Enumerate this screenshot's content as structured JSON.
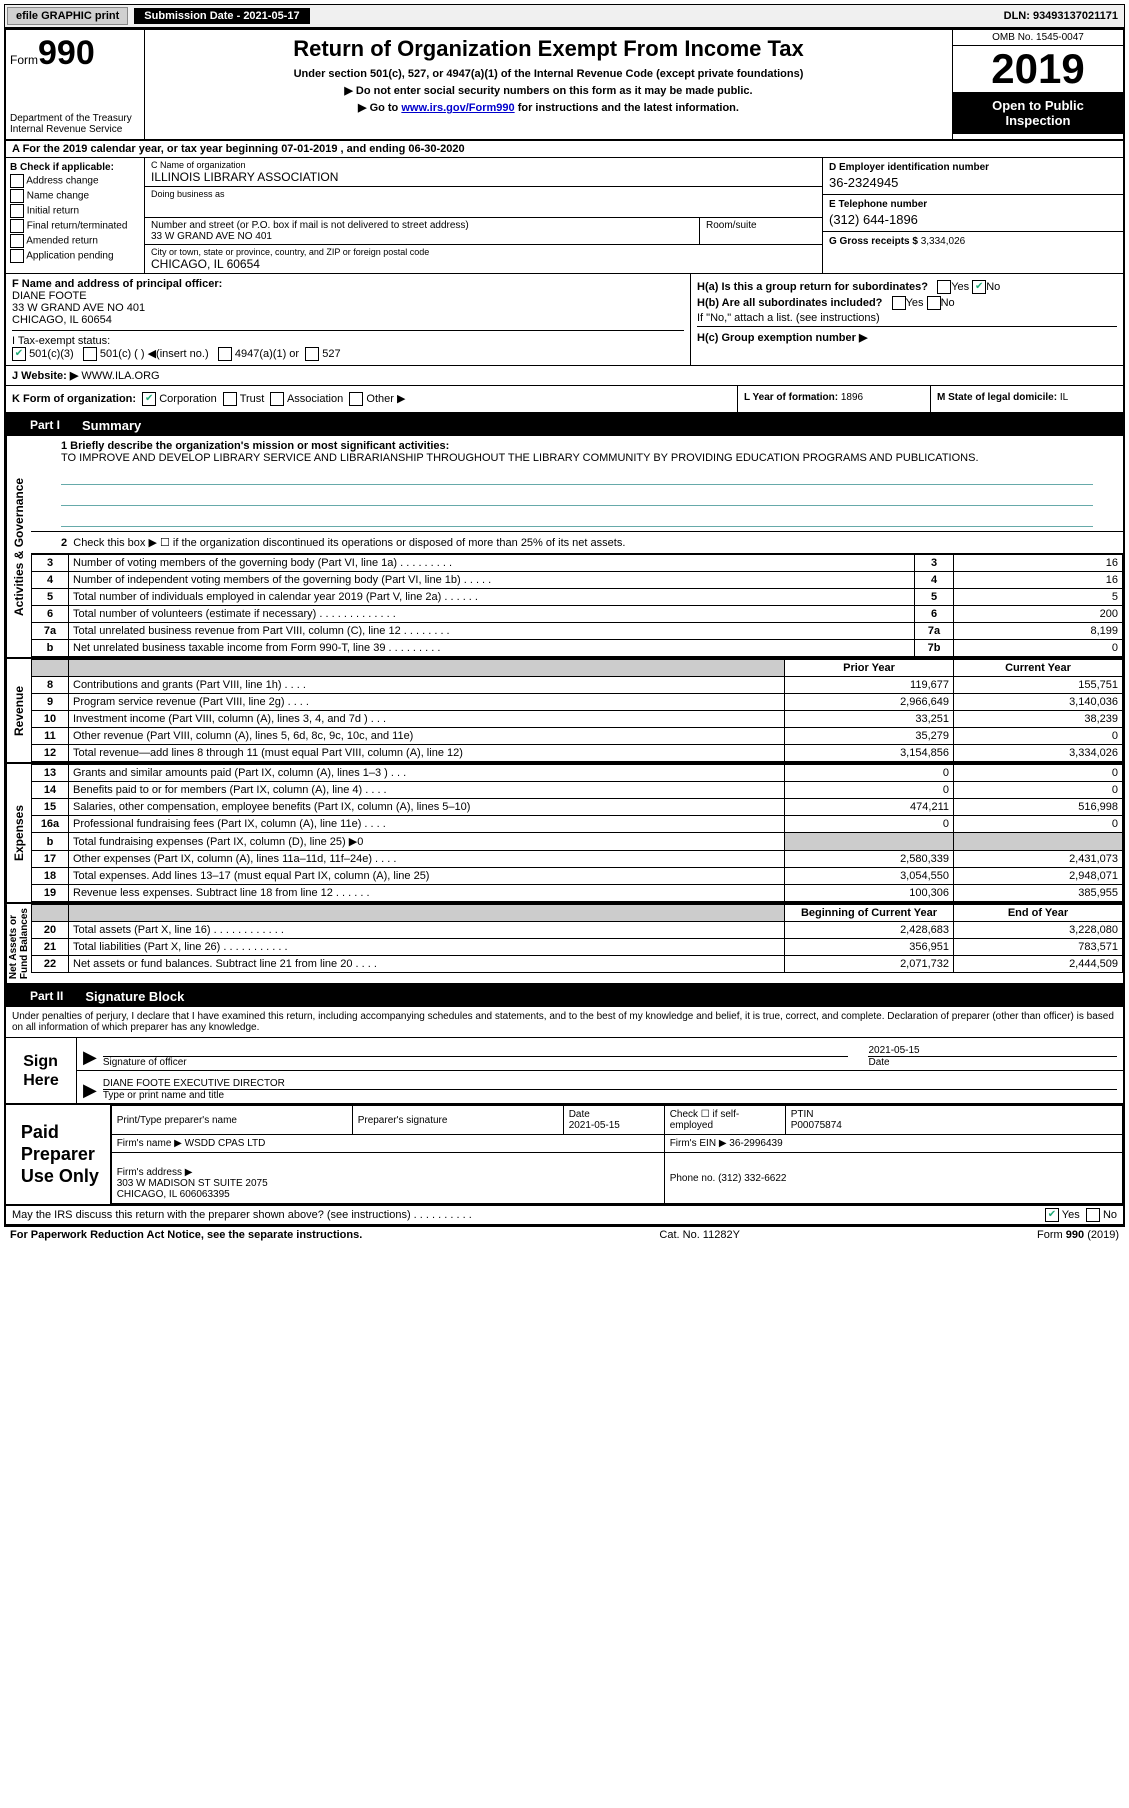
{
  "topbar": {
    "efile": "efile GRAPHIC print",
    "submission_label": "Submission Date - 2021-05-17",
    "dln": "DLN: 93493137021171"
  },
  "header": {
    "form_word": "Form",
    "form_num": "990",
    "dept": "Department of the Treasury\nInternal Revenue Service",
    "title": "Return of Organization Exempt From Income Tax",
    "subtitle": "Under section 501(c), 527, or 4947(a)(1) of the Internal Revenue Code (except private foundations)",
    "line2": "▶ Do not enter social security numbers on this form as it may be made public.",
    "line3_pre": "▶ Go to ",
    "line3_link": "www.irs.gov/Form990",
    "line3_post": " for instructions and the latest information.",
    "omb": "OMB No. 1545-0047",
    "year": "2019",
    "open": "Open to Public\nInspection"
  },
  "row_a": "A For the 2019 calendar year, or tax year beginning 07-01-2019   , and ending 06-30-2020",
  "col_b": {
    "hdr": "B Check if applicable:",
    "items": [
      "Address change",
      "Name change",
      "Initial return",
      "Final return/terminated",
      "Amended return",
      "Application pending"
    ]
  },
  "col_c": {
    "name_lbl": "C Name of organization",
    "name_val": "ILLINOIS LIBRARY ASSOCIATION",
    "dba_lbl": "Doing business as",
    "dba_val": "",
    "addr_lbl": "Number and street (or P.O. box if mail is not delivered to street address)",
    "addr_val": "33 W GRAND AVE NO 401",
    "suite_lbl": "Room/suite",
    "city_lbl": "City or town, state or province, country, and ZIP or foreign postal code",
    "city_val": "CHICAGO, IL  60654"
  },
  "col_de": {
    "d_lbl": "D Employer identification number",
    "d_val": "36-2324945",
    "e_lbl": "E Telephone number",
    "e_val": "(312) 644-1896",
    "g_lbl": "G Gross receipts $",
    "g_val": "3,334,026"
  },
  "row_f": {
    "lbl": "F  Name and address of principal officer:",
    "name": "DIANE FOOTE",
    "addr1": "33 W GRAND AVE NO 401",
    "addr2": "CHICAGO, IL  60654"
  },
  "row_h": {
    "ha": "H(a)  Is this a group return for subordinates?",
    "hb": "H(b)  Are all subordinates included?",
    "hb2": "If \"No,\" attach a list. (see instructions)",
    "hc": "H(c)  Group exemption number ▶"
  },
  "row_i": {
    "lbl": "I    Tax-exempt status:",
    "opts": [
      "501(c)(3)",
      "501(c) (  ) ◀(insert no.)",
      "4947(a)(1) or",
      "527"
    ]
  },
  "row_j": {
    "lbl": "J    Website: ▶",
    "val": "WWW.ILA.ORG"
  },
  "row_k": {
    "lbl": "K Form of organization:",
    "opts": [
      "Corporation",
      "Trust",
      "Association",
      "Other ▶"
    ]
  },
  "row_l": {
    "lbl": "L Year of formation:",
    "val": "1896"
  },
  "row_m": {
    "lbl": "M State of legal domicile:",
    "val": "IL"
  },
  "part1": {
    "tab": "Part I",
    "title": "Summary"
  },
  "mission": {
    "q": "1   Briefly describe the organization's mission or most significant activities:",
    "text": "TO IMPROVE AND DEVELOP LIBRARY SERVICE AND LIBRARIANSHIP THROUGHOUT THE LIBRARY COMMUNITY BY PROVIDING EDUCATION PROGRAMS AND PUBLICATIONS."
  },
  "activities": {
    "label": "Activities & Governance",
    "line2": "Check this box ▶ ☐  if the organization discontinued its operations or disposed of more than 25% of its net assets.",
    "rows": [
      {
        "n": "3",
        "d": "Number of voting members of the governing body (Part VI, line 1a)   .    .    .    .    .    .    .    .    .",
        "b": "3",
        "v": "16"
      },
      {
        "n": "4",
        "d": "Number of independent voting members of the governing body (Part VI, line 1b)   .    .    .    .    .",
        "b": "4",
        "v": "16"
      },
      {
        "n": "5",
        "d": "Total number of individuals employed in calendar year 2019 (Part V, line 2a)   .    .    .    .    .    .",
        "b": "5",
        "v": "5"
      },
      {
        "n": "6",
        "d": "Total number of volunteers (estimate if necessary)    .    .    .    .    .    .    .    .    .    .    .    .    .",
        "b": "6",
        "v": "200"
      },
      {
        "n": "7a",
        "d": "Total unrelated business revenue from Part VIII, column (C), line 12   .    .    .    .    .    .    .    .",
        "b": "7a",
        "v": "8,199"
      },
      {
        "n": "b",
        "d": "Net unrelated business taxable income from Form 990-T, line 39    .    .    .    .    .    .    .    .    .",
        "b": "7b",
        "v": "0"
      }
    ]
  },
  "revenue": {
    "label": "Revenue",
    "hdr_prior": "Prior Year",
    "hdr_curr": "Current Year",
    "rows": [
      {
        "n": "8",
        "d": "Contributions and grants (Part VIII, line 1h)    .    .    .    .",
        "p": "119,677",
        "c": "155,751"
      },
      {
        "n": "9",
        "d": "Program service revenue (Part VIII, line 2g)    .    .    .    .",
        "p": "2,966,649",
        "c": "3,140,036"
      },
      {
        "n": "10",
        "d": "Investment income (Part VIII, column (A), lines 3, 4, and 7d )    .    .    .",
        "p": "33,251",
        "c": "38,239"
      },
      {
        "n": "11",
        "d": "Other revenue (Part VIII, column (A), lines 5, 6d, 8c, 9c, 10c, and 11e)",
        "p": "35,279",
        "c": "0"
      },
      {
        "n": "12",
        "d": "Total revenue—add lines 8 through 11 (must equal Part VIII, column (A), line 12)",
        "p": "3,154,856",
        "c": "3,334,026"
      }
    ]
  },
  "expenses": {
    "label": "Expenses",
    "rows": [
      {
        "n": "13",
        "d": "Grants and similar amounts paid (Part IX, column (A), lines 1–3 )    .    .    .",
        "p": "0",
        "c": "0"
      },
      {
        "n": "14",
        "d": "Benefits paid to or for members (Part IX, column (A), line 4)    .    .    .    .",
        "p": "0",
        "c": "0"
      },
      {
        "n": "15",
        "d": "Salaries, other compensation, employee benefits (Part IX, column (A), lines 5–10)",
        "p": "474,211",
        "c": "516,998"
      },
      {
        "n": "16a",
        "d": "Professional fundraising fees (Part IX, column (A), line 11e)    .    .    .    .",
        "p": "0",
        "c": "0"
      },
      {
        "n": "b",
        "d": "Total fundraising expenses (Part IX, column (D), line 25) ▶0",
        "p": "",
        "c": "",
        "shade": true
      },
      {
        "n": "17",
        "d": "Other expenses (Part IX, column (A), lines 11a–11d, 11f–24e)    .    .    .    .",
        "p": "2,580,339",
        "c": "2,431,073"
      },
      {
        "n": "18",
        "d": "Total expenses. Add lines 13–17 (must equal Part IX, column (A), line 25)",
        "p": "3,054,550",
        "c": "2,948,071"
      },
      {
        "n": "19",
        "d": "Revenue less expenses. Subtract line 18 from line 12   .    .    .    .    .    .",
        "p": "100,306",
        "c": "385,955"
      }
    ]
  },
  "netassets": {
    "label": "Net Assets or\nFund Balances",
    "hdr_beg": "Beginning of Current Year",
    "hdr_end": "End of Year",
    "rows": [
      {
        "n": "20",
        "d": "Total assets (Part X, line 16)   .    .    .    .    .    .    .    .    .    .    .    .",
        "p": "2,428,683",
        "c": "3,228,080"
      },
      {
        "n": "21",
        "d": "Total liabilities (Part X, line 26)   .    .    .    .    .    .    .    .    .    .    .",
        "p": "356,951",
        "c": "783,571"
      },
      {
        "n": "22",
        "d": "Net assets or fund balances. Subtract line 21 from line 20    .    .    .    .",
        "p": "2,071,732",
        "c": "2,444,509"
      }
    ]
  },
  "part2": {
    "tab": "Part II",
    "title": "Signature Block"
  },
  "sig_intro": "Under penalties of perjury, I declare that I have examined this return, including accompanying schedules and statements, and to the best of my knowledge and belief, it is true, correct, and complete. Declaration of preparer (other than officer) is based on all information of which preparer has any knowledge.",
  "sign": {
    "left": "Sign\nHere",
    "sig_lbl": "Signature of officer",
    "date_lbl": "Date",
    "date_val": "2021-05-15",
    "name_val": "DIANE FOOTE  EXECUTIVE DIRECTOR",
    "name_lbl": "Type or print name and title"
  },
  "prep": {
    "left": "Paid\nPreparer\nUse Only",
    "h1": "Print/Type preparer's name",
    "h2": "Preparer's signature",
    "h3": "Date",
    "h3v": "2021-05-15",
    "h4": "Check ☐ if self-employed",
    "h5": "PTIN",
    "h5v": "P00075874",
    "firm_lbl": "Firm's name    ▶",
    "firm_val": "WSDD CPAS LTD",
    "ein_lbl": "Firm's EIN ▶",
    "ein_val": "36-2996439",
    "addr_lbl": "Firm's address ▶",
    "addr_val": "303 W MADISON ST SUITE 2075\nCHICAGO, IL  606063395",
    "phone_lbl": "Phone no.",
    "phone_val": "(312) 332-6622"
  },
  "footer": {
    "q": "May the IRS discuss this return with the preparer shown above? (see instructions)    .    .    .    .    .    .    .    .    .    .",
    "yes": "Yes",
    "no": "No",
    "paperwork": "For Paperwork Reduction Act Notice, see the separate instructions.",
    "cat": "Cat. No. 11282Y",
    "form": "Form 990 (2019)"
  }
}
